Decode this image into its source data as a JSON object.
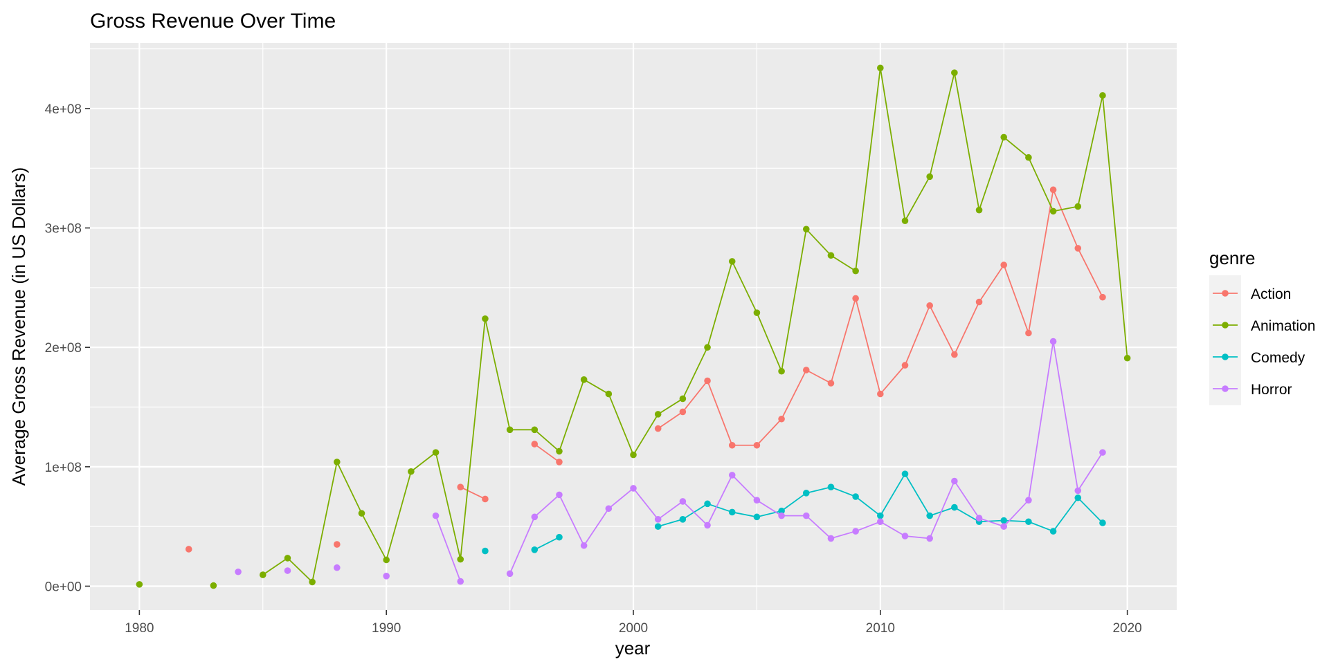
{
  "chart_data": {
    "type": "line",
    "title": "Gross Revenue Over Time",
    "xlabel": "year",
    "ylabel": "Average Gross Revenue (in US Dollars)",
    "xlim": [
      1978,
      2022
    ],
    "ylim": [
      -20000000,
      455000000
    ],
    "x_ticks": [
      1980,
      1990,
      2000,
      2010,
      2020
    ],
    "x_tick_labels": [
      "1980",
      "1990",
      "2000",
      "2010",
      "2020"
    ],
    "y_ticks": [
      0,
      100000000,
      200000000,
      300000000,
      400000000
    ],
    "y_tick_labels": [
      "0e+00",
      "1e+08",
      "2e+08",
      "3e+08",
      "4e+08"
    ],
    "grid": true,
    "background": "#ebebeb",
    "legend": {
      "title": "genre",
      "position": "right"
    },
    "series": [
      {
        "name": "Action",
        "color": "#f8766d",
        "points": [
          [
            1982,
            31000000
          ],
          [
            1988,
            35000000
          ],
          [
            1993,
            83000000
          ],
          [
            1994,
            73000000
          ],
          [
            1996,
            119000000
          ],
          [
            1997,
            104000000
          ],
          [
            2001,
            132000000
          ],
          [
            2002,
            146000000
          ],
          [
            2003,
            172000000
          ],
          [
            2004,
            118000000
          ],
          [
            2005,
            118000000
          ],
          [
            2006,
            140000000
          ],
          [
            2007,
            181000000
          ],
          [
            2008,
            170000000
          ],
          [
            2009,
            241000000
          ],
          [
            2010,
            161000000
          ],
          [
            2011,
            185000000
          ],
          [
            2012,
            235000000
          ],
          [
            2013,
            194000000
          ],
          [
            2014,
            238000000
          ],
          [
            2015,
            269000000
          ],
          [
            2016,
            212000000
          ],
          [
            2017,
            332000000
          ],
          [
            2018,
            283000000
          ],
          [
            2019,
            242000000
          ]
        ]
      },
      {
        "name": "Animation",
        "color": "#7cae00",
        "points": [
          [
            1980,
            1500000
          ],
          [
            1983,
            500000
          ],
          [
            1985,
            9500000
          ],
          [
            1986,
            23500000
          ],
          [
            1987,
            3500000
          ],
          [
            1988,
            104000000
          ],
          [
            1989,
            61000000
          ],
          [
            1990,
            22000000
          ],
          [
            1991,
            96000000
          ],
          [
            1992,
            112000000
          ],
          [
            1993,
            22500000
          ],
          [
            1994,
            224000000
          ],
          [
            1995,
            131000000
          ],
          [
            1996,
            131000000
          ],
          [
            1997,
            113000000
          ],
          [
            1998,
            173000000
          ],
          [
            1999,
            161000000
          ],
          [
            2000,
            110000000
          ],
          [
            2001,
            144000000
          ],
          [
            2002,
            157000000
          ],
          [
            2003,
            200000000
          ],
          [
            2004,
            272000000
          ],
          [
            2005,
            229000000
          ],
          [
            2006,
            180000000
          ],
          [
            2007,
            299000000
          ],
          [
            2008,
            277000000
          ],
          [
            2009,
            264000000
          ],
          [
            2010,
            434000000
          ],
          [
            2011,
            306000000
          ],
          [
            2012,
            343000000
          ],
          [
            2013,
            430000000
          ],
          [
            2014,
            315000000
          ],
          [
            2015,
            376000000
          ],
          [
            2016,
            359000000
          ],
          [
            2017,
            314000000
          ],
          [
            2018,
            318000000
          ],
          [
            2019,
            411000000
          ],
          [
            2020,
            191000000
          ]
        ]
      },
      {
        "name": "Comedy",
        "color": "#00bfc4",
        "points": [
          [
            1994,
            29500000
          ],
          [
            1996,
            30500000
          ],
          [
            1997,
            41000000
          ],
          [
            2001,
            50000000
          ],
          [
            2002,
            56000000
          ],
          [
            2003,
            69000000
          ],
          [
            2004,
            62000000
          ],
          [
            2005,
            58000000
          ],
          [
            2006,
            63000000
          ],
          [
            2007,
            78000000
          ],
          [
            2008,
            83000000
          ],
          [
            2009,
            75000000
          ],
          [
            2010,
            59000000
          ],
          [
            2011,
            94000000
          ],
          [
            2012,
            59000000
          ],
          [
            2013,
            66000000
          ],
          [
            2014,
            54000000
          ],
          [
            2015,
            55000000
          ],
          [
            2016,
            54000000
          ],
          [
            2017,
            46000000
          ],
          [
            2018,
            74000000
          ],
          [
            2019,
            53000000
          ]
        ]
      },
      {
        "name": "Horror",
        "color": "#c77cff",
        "points": [
          [
            1984,
            12000000
          ],
          [
            1986,
            13000000
          ],
          [
            1988,
            15500000
          ],
          [
            1990,
            8500000
          ],
          [
            1992,
            59000000
          ],
          [
            1993,
            4000000
          ],
          [
            1995,
            10500000
          ],
          [
            1996,
            58000000
          ],
          [
            1997,
            76500000
          ],
          [
            1998,
            34000000
          ],
          [
            1999,
            65000000
          ],
          [
            2000,
            82000000
          ],
          [
            2001,
            56000000
          ],
          [
            2002,
            71000000
          ],
          [
            2003,
            51000000
          ],
          [
            2004,
            93000000
          ],
          [
            2005,
            72000000
          ],
          [
            2006,
            59000000
          ],
          [
            2007,
            59000000
          ],
          [
            2008,
            40000000
          ],
          [
            2009,
            46000000
          ],
          [
            2010,
            54000000
          ],
          [
            2011,
            42000000
          ],
          [
            2012,
            40000000
          ],
          [
            2013,
            88000000
          ],
          [
            2014,
            57000000
          ],
          [
            2015,
            50000000
          ],
          [
            2016,
            72000000
          ],
          [
            2017,
            205000000
          ],
          [
            2018,
            80000000
          ],
          [
            2019,
            112000000
          ]
        ]
      }
    ]
  }
}
